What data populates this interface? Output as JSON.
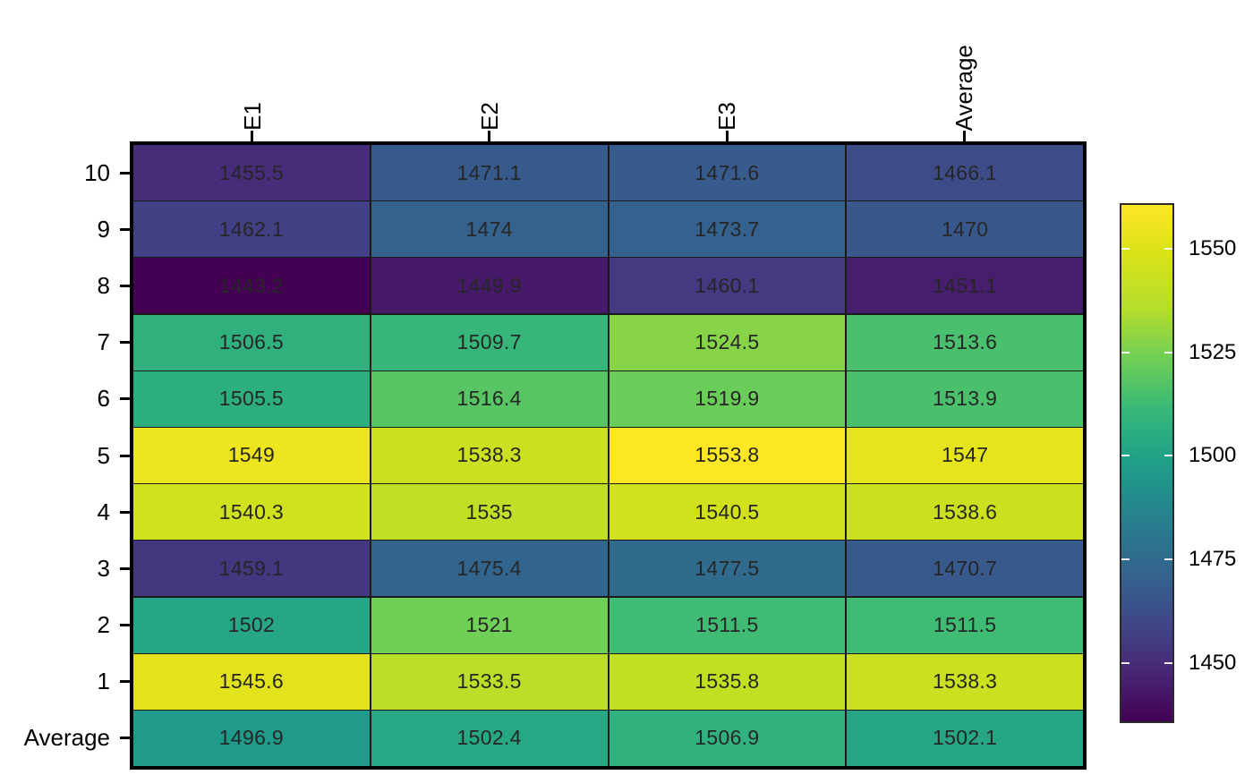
{
  "chart_data": {
    "type": "heatmap",
    "title": "",
    "columns": [
      "E1",
      "E2",
      "E3",
      "Average"
    ],
    "rows": [
      "10",
      "9",
      "8",
      "7",
      "6",
      "5",
      "4",
      "3",
      "2",
      "1",
      "Average"
    ],
    "values": [
      [
        1455.5,
        1471.1,
        1471.6,
        1466.1
      ],
      [
        1462.1,
        1474,
        1473.7,
        1470
      ],
      [
        1443.2,
        1449.9,
        1460.1,
        1451.1
      ],
      [
        1506.5,
        1509.7,
        1524.5,
        1513.6
      ],
      [
        1505.5,
        1516.4,
        1519.9,
        1513.9
      ],
      [
        1549,
        1538.3,
        1553.8,
        1547
      ],
      [
        1540.3,
        1535,
        1540.5,
        1538.6
      ],
      [
        1459.1,
        1475.4,
        1477.5,
        1470.7
      ],
      [
        1502,
        1521,
        1511.5,
        1511.5
      ],
      [
        1545.6,
        1533.5,
        1535.8,
        1538.3
      ],
      [
        1496.9,
        1502.4,
        1506.9,
        1502.1
      ]
    ],
    "colormap": "viridis",
    "colormap_stops": [
      "#440154",
      "#482878",
      "#3e4a89",
      "#31688e",
      "#26828e",
      "#1f9e89",
      "#35b779",
      "#6ece58",
      "#b5de2b",
      "#d8e219",
      "#fde725"
    ],
    "color_domain": [
      1443.2,
      1553.8
    ],
    "colorbar": {
      "ticks": [
        1550,
        1525,
        1500,
        1475,
        1450
      ],
      "domain": [
        1436,
        1560.5
      ],
      "position": "right"
    },
    "grid": true,
    "legend_position": "right",
    "xlabel": "",
    "ylabel": ""
  }
}
